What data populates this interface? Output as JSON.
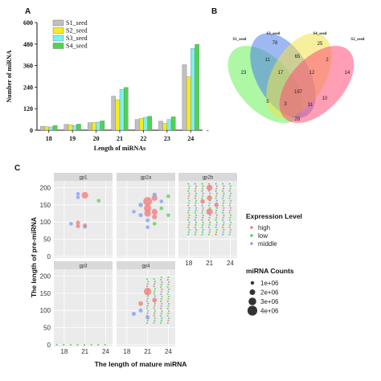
{
  "panels": {
    "a": "A",
    "b": "B",
    "c": "C"
  },
  "chart_data": [
    {
      "type": "bar",
      "xlabel": "Length of miRNAs",
      "ylabel": "Number of miRNA",
      "ylim": [
        0,
        600
      ],
      "yticks": [
        "0",
        "120",
        "240",
        "360",
        "480",
        "600"
      ],
      "categories": [
        "18",
        "19",
        "20",
        "21",
        "22",
        "23",
        "24"
      ],
      "series": [
        {
          "name": "S1_seed",
          "color": "#c0c0c0",
          "values": [
            22,
            33,
            42,
            190,
            60,
            50,
            365
          ]
        },
        {
          "name": "S2_seed",
          "color": "#f5ec1e",
          "values": [
            20,
            30,
            43,
            170,
            66,
            38,
            298
          ]
        },
        {
          "name": "S3_seed",
          "color": "#7ff0f0",
          "values": [
            18,
            27,
            45,
            228,
            72,
            60,
            455
          ]
        },
        {
          "name": "S4_seed",
          "color": "#4fd44f",
          "values": [
            26,
            34,
            52,
            238,
            78,
            75,
            478
          ]
        }
      ],
      "extra_mark": "-"
    },
    {
      "type": "venn",
      "sets": [
        {
          "name": "S1_seed",
          "color": "#6cf05a"
        },
        {
          "name": "S3_seed",
          "color": "#4d7de8"
        },
        {
          "name": "S4_seed",
          "color": "#f0e24a"
        },
        {
          "name": "S2_seed",
          "color": "#ff4f77"
        }
      ],
      "regions": [
        "23",
        "78",
        "25",
        "14",
        "11",
        "65",
        "2",
        "17",
        "12",
        "5",
        "197",
        "10",
        "3",
        "31",
        "28"
      ]
    },
    {
      "type": "scatter",
      "xlabel": "The length of mature miRNA",
      "ylabel": "The length of pre-miRNA",
      "facets": [
        "gp1",
        "gp2a",
        "gp2b",
        "gp3",
        "gp4"
      ],
      "xticks": [
        "18",
        "21",
        "24"
      ],
      "yticks": [
        "0",
        "50",
        "100",
        "150",
        "200"
      ],
      "xlim": [
        16.5,
        25
      ],
      "ylim": [
        -5,
        220
      ],
      "color_legend": {
        "title": "Expression Level",
        "items": [
          {
            "label": "high",
            "color": "#f08080"
          },
          {
            "label": "low",
            "color": "#5fd35f"
          },
          {
            "label": "middle",
            "color": "#8aa0f0"
          }
        ]
      },
      "size_legend": {
        "title": "miRNA Counts",
        "items": [
          "1e+06",
          "2e+06",
          "3e+06",
          "4e+06"
        ]
      },
      "points": {
        "gp1": [
          {
            "x": 21,
            "y": 178,
            "level": "high",
            "count": 1.5
          },
          {
            "x": 20,
            "y": 182,
            "level": "middle",
            "count": 0.2
          },
          {
            "x": 20,
            "y": 172,
            "level": "middle",
            "count": 0.2
          },
          {
            "x": 23,
            "y": 162,
            "level": "low",
            "count": 0.2
          },
          {
            "x": 20,
            "y": 98,
            "level": "high",
            "count": 0.3
          },
          {
            "x": 20,
            "y": 88,
            "level": "high",
            "count": 0.3
          },
          {
            "x": 21,
            "y": 90,
            "level": "high",
            "count": 0.3
          },
          {
            "x": 21,
            "y": 86,
            "level": "middle",
            "count": 0.2
          },
          {
            "x": 19,
            "y": 95,
            "level": "middle",
            "count": 0.2
          }
        ],
        "gp2a": [
          {
            "x": 21,
            "y": 160,
            "level": "high",
            "count": 3.2
          },
          {
            "x": 21,
            "y": 140,
            "level": "high",
            "count": 2.0
          },
          {
            "x": 21,
            "y": 125,
            "level": "high",
            "count": 1.5
          },
          {
            "x": 22,
            "y": 170,
            "level": "high",
            "count": 1.0
          },
          {
            "x": 22,
            "y": 130,
            "level": "high",
            "count": 1.0
          },
          {
            "x": 22,
            "y": 115,
            "level": "high",
            "count": 0.6
          },
          {
            "x": 20,
            "y": 150,
            "level": "middle",
            "count": 0.4
          },
          {
            "x": 20,
            "y": 120,
            "level": "middle",
            "count": 0.3
          },
          {
            "x": 22,
            "y": 180,
            "level": "middle",
            "count": 0.3
          },
          {
            "x": 21,
            "y": 105,
            "level": "middle",
            "count": 0.3
          },
          {
            "x": 21,
            "y": 85,
            "level": "middle",
            "count": 0.2
          },
          {
            "x": 23,
            "y": 160,
            "level": "middle",
            "count": 0.2
          },
          {
            "x": 24,
            "y": 175,
            "level": "low",
            "count": 0.2
          },
          {
            "x": 23,
            "y": 140,
            "level": "low",
            "count": 0.2
          },
          {
            "x": 24,
            "y": 120,
            "level": "low",
            "count": 0.2
          },
          {
            "x": 19,
            "y": 130,
            "level": "middle",
            "count": 0.2
          },
          {
            "x": 22,
            "y": 95,
            "level": "low",
            "count": 0.2
          }
        ],
        "gp2b": [
          {
            "x": 21,
            "y": 200,
            "level": "high",
            "count": 1.2
          },
          {
            "x": 21,
            "y": 170,
            "level": "high",
            "count": 0.8
          },
          {
            "x": 21,
            "y": 130,
            "level": "high",
            "count": 1.4
          },
          {
            "x": 20,
            "y": 160,
            "level": "high",
            "count": 0.4
          },
          {
            "x": 22,
            "y": 150,
            "level": "high",
            "count": 0.4
          }
        ],
        "gp3": [],
        "gp4": [
          {
            "x": 21,
            "y": 155,
            "level": "high",
            "count": 2.2
          },
          {
            "x": 20,
            "y": 120,
            "level": "high",
            "count": 0.5
          },
          {
            "x": 22,
            "y": 130,
            "level": "high",
            "count": 0.5
          },
          {
            "x": 19,
            "y": 90,
            "level": "middle",
            "count": 0.3
          },
          {
            "x": 20,
            "y": 100,
            "level": "middle",
            "count": 0.3
          },
          {
            "x": 21,
            "y": 80,
            "level": "middle",
            "count": 0.3
          }
        ]
      },
      "dense_columns": {
        "gp2b": [
          {
            "x": 18,
            "ymin": 60,
            "ymax": 215
          },
          {
            "x": 19,
            "ymin": 60,
            "ymax": 215
          },
          {
            "x": 20,
            "ymin": 60,
            "ymax": 215
          },
          {
            "x": 21,
            "ymin": 60,
            "ymax": 215
          },
          {
            "x": 22,
            "ymin": 60,
            "ymax": 215
          },
          {
            "x": 23,
            "ymin": 60,
            "ymax": 215
          },
          {
            "x": 24,
            "ymin": 60,
            "ymax": 215
          }
        ],
        "gp4": [
          {
            "x": 21,
            "ymin": 60,
            "ymax": 195
          },
          {
            "x": 22,
            "ymin": 60,
            "ymax": 195
          },
          {
            "x": 23,
            "ymin": 60,
            "ymax": 200
          },
          {
            "x": 24,
            "ymin": 60,
            "ymax": 200
          }
        ],
        "gp3": [
          {
            "x": 17,
            "ymin": 0,
            "ymax": 0
          },
          {
            "x": 18,
            "ymin": 0,
            "ymax": 0
          },
          {
            "x": 19,
            "ymin": 0,
            "ymax": 0
          },
          {
            "x": 20,
            "ymin": 0,
            "ymax": 0
          },
          {
            "x": 21,
            "ymin": 0,
            "ymax": 0
          },
          {
            "x": 22,
            "ymin": 0,
            "ymax": 0
          },
          {
            "x": 23,
            "ymin": 0,
            "ymax": 0
          },
          {
            "x": 24,
            "ymin": 0,
            "ymax": 0
          }
        ]
      }
    }
  ]
}
